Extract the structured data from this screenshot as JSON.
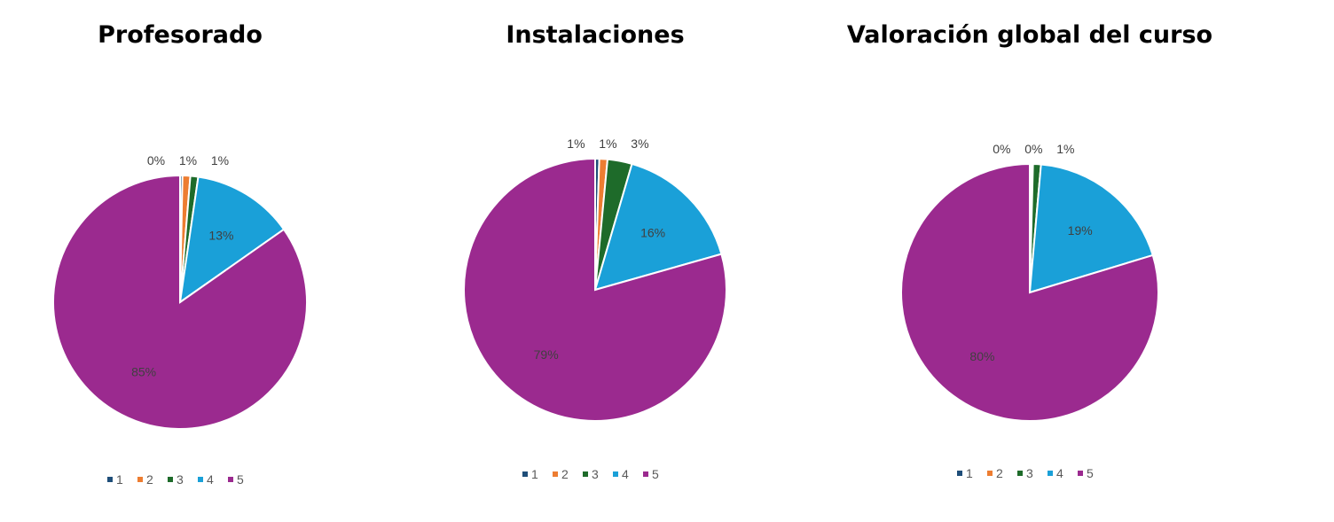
{
  "chart_data": [
    {
      "type": "pie",
      "title": "Profesorado",
      "categories": [
        "1",
        "2",
        "3",
        "4",
        "5"
      ],
      "values": [
        0.3,
        1,
        1,
        13,
        85
      ],
      "labels": [
        "0%",
        "1%",
        "1%",
        "13%",
        "85%"
      ],
      "colors": [
        "#1f4e79",
        "#ed7d31",
        "#1e6b2a",
        "#1aa0d8",
        "#9b2a8f"
      ],
      "legend": "bottom"
    },
    {
      "type": "pie",
      "title": "Instalaciones",
      "categories": [
        "1",
        "2",
        "3",
        "4",
        "5"
      ],
      "values": [
        0.5,
        1,
        3,
        16,
        79
      ],
      "labels": [
        "1%",
        "1%",
        "3%",
        "16%",
        "79%"
      ],
      "colors": [
        "#1f4e79",
        "#ed7d31",
        "#1e6b2a",
        "#1aa0d8",
        "#9b2a8f"
      ],
      "legend": "bottom"
    },
    {
      "type": "pie",
      "title": "Valoración global del curso",
      "categories": [
        "1",
        "2",
        "3",
        "4",
        "5"
      ],
      "values": [
        0.2,
        0.2,
        1,
        19,
        80
      ],
      "labels": [
        "0%",
        "0%",
        "1%",
        "19%",
        "80%"
      ],
      "colors": [
        "#1f4e79",
        "#ed7d31",
        "#1e6b2a",
        "#1aa0d8",
        "#9b2a8f"
      ],
      "legend": "bottom"
    }
  ]
}
